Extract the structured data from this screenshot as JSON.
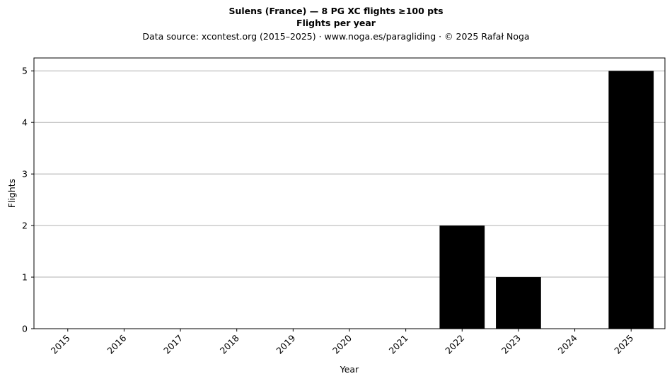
{
  "chart_data": {
    "type": "bar",
    "title": "Sulens (France)  —  8 PG XC flights ≥100 pts",
    "subtitle_bold": "Flights per year",
    "source_note": "Data source: xcontest.org (2015–2025)  ·  www.noga.es/paragliding  ·  © 2025 Rafał Noga",
    "xlabel": "Year",
    "ylabel": "Flights",
    "categories": [
      "2015",
      "2016",
      "2017",
      "2018",
      "2019",
      "2020",
      "2021",
      "2022",
      "2023",
      "2024",
      "2025"
    ],
    "values": [
      0,
      0,
      0,
      0,
      0,
      0,
      0,
      2,
      1,
      0,
      5
    ],
    "ylim": [
      0,
      5.25
    ],
    "yticks": [
      "0",
      "1",
      "2",
      "3",
      "4",
      "5"
    ],
    "grid": "horizontal",
    "bar_color": "#000000",
    "grid_color": "#b0b0b0"
  }
}
